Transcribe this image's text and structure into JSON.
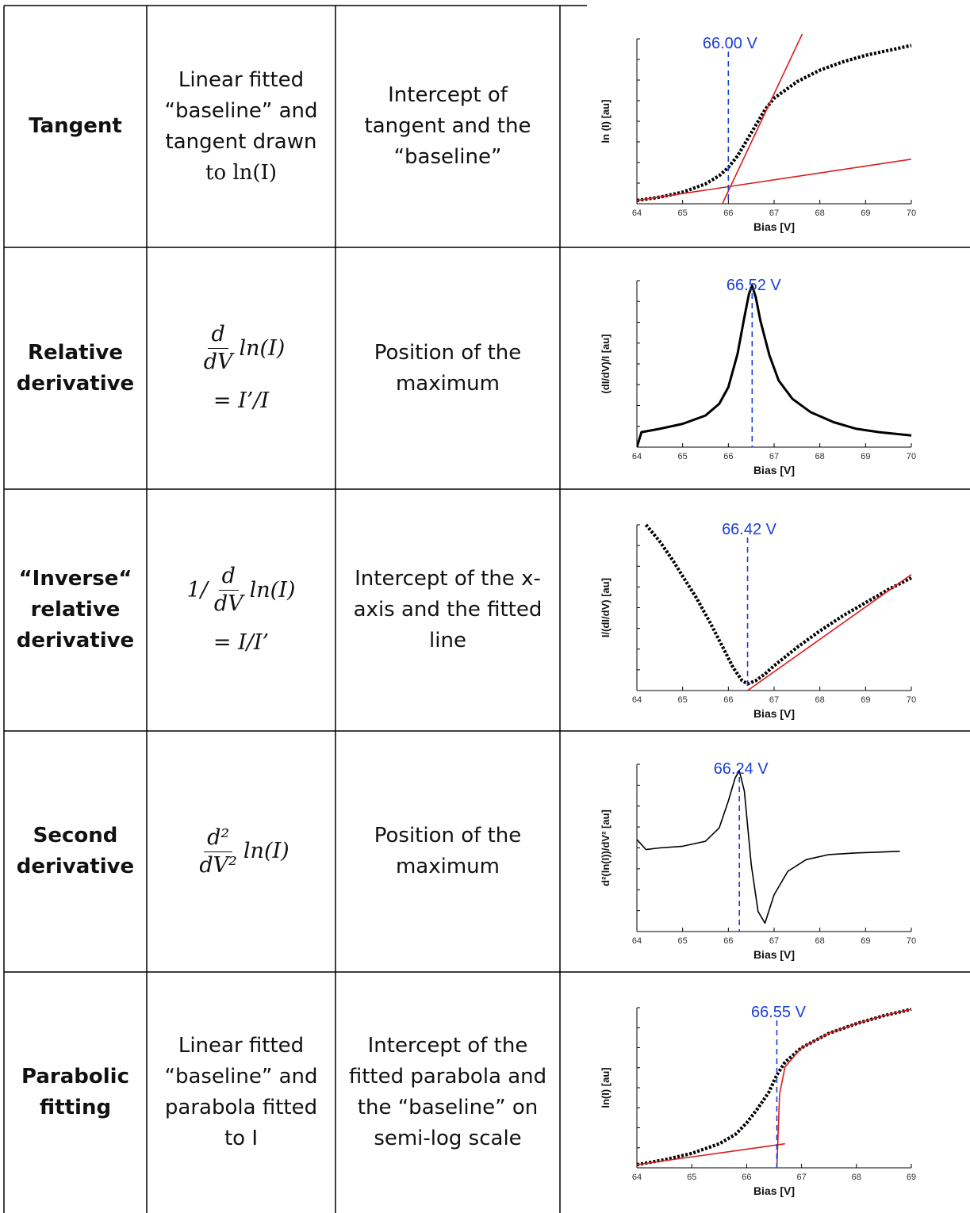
{
  "rows": [
    {
      "method": [
        "Tangent"
      ],
      "description": [
        "Linear fitted",
        "“baseline” and",
        "tangent drawn",
        "to ln(I)"
      ],
      "criterion": [
        "Intercept of",
        "tangent and the",
        "“baseline”"
      ],
      "formula_lines": []
    },
    {
      "method": [
        "Relative",
        "derivative"
      ],
      "formula_parts": {
        "num": "d",
        "den": "dV",
        "fn": "ln(I)",
        "eq": "= I’/I"
      },
      "criterion": [
        "Position of the",
        "maximum"
      ]
    },
    {
      "method": [
        "“Inverse“",
        "relative",
        "derivative"
      ],
      "formula_parts": {
        "pre": "1/",
        "num": "d",
        "den": "dV",
        "fn": "ln(I)",
        "eq": "= I/I’"
      },
      "criterion": [
        "Intercept of the x-",
        "axis and the fitted",
        "line"
      ]
    },
    {
      "method": [
        "Second",
        "derivative"
      ],
      "formula_parts": {
        "num": "d²",
        "den": "dV²",
        "fn": "ln(I)"
      },
      "criterion": [
        "Position of the",
        "maximum"
      ]
    },
    {
      "method": [
        "Parabolic",
        "fitting"
      ],
      "description": [
        "Linear fitted",
        "“baseline” and",
        "parabola fitted",
        "to I"
      ],
      "criterion": [
        "Intercept of the",
        "fitted parabola and",
        "the “baseline” on",
        "semi-log scale"
      ]
    }
  ],
  "chart_data": [
    {
      "type": "line",
      "xlabel": "Bias [V]",
      "ylabel": "ln (I) [au]",
      "xlim": [
        64,
        70
      ],
      "xticks": [
        "64",
        "65",
        "66",
        "67",
        "68",
        "69",
        "70"
      ],
      "annotation": "66.00 V",
      "marker_x": 66.0,
      "series": [
        {
          "x": [
            64,
            64.5,
            65,
            65.5,
            65.8,
            66.0,
            66.2,
            66.5,
            66.8,
            67,
            67.5,
            68,
            68.5,
            69,
            69.5,
            70
          ],
          "y": [
            0.02,
            0.04,
            0.07,
            0.12,
            0.17,
            0.22,
            0.29,
            0.43,
            0.57,
            0.64,
            0.74,
            0.81,
            0.86,
            0.9,
            0.93,
            0.96
          ]
        },
        {
          "x": [
            64,
            70
          ],
          "y": [
            0.02,
            0.27
          ]
        },
        {
          "x": [
            65.75,
            67.7
          ],
          "y": [
            -0.07,
            1.08
          ]
        }
      ],
      "colors": {
        "data": "#000000",
        "fit": "#dd1c1c",
        "marker": "#1a3fd6"
      }
    },
    {
      "type": "line",
      "xlabel": "Bias [V]",
      "ylabel": "(dI/dV)/I [au]",
      "xlim": [
        64,
        70
      ],
      "xticks": [
        "64",
        "65",
        "66",
        "67",
        "68",
        "69",
        "70"
      ],
      "annotation": "66.52 V",
      "marker_x": 66.52,
      "series": [
        {
          "x": [
            64,
            64.1,
            64.5,
            65,
            65.5,
            65.8,
            66,
            66.2,
            66.35,
            66.45,
            66.52,
            66.6,
            66.7,
            66.9,
            67.1,
            67.4,
            67.8,
            68.3,
            68.8,
            69.3,
            70
          ],
          "y": [
            0.0,
            0.09,
            0.11,
            0.14,
            0.19,
            0.26,
            0.36,
            0.56,
            0.78,
            0.92,
            0.97,
            0.9,
            0.76,
            0.55,
            0.4,
            0.29,
            0.21,
            0.15,
            0.11,
            0.09,
            0.07
          ]
        }
      ],
      "colors": {
        "data": "#000000",
        "marker": "#1a3fd6"
      }
    },
    {
      "type": "line",
      "xlabel": "Bias [V]",
      "ylabel": "I/(dI/dV) [au]",
      "xlim": [
        64,
        70
      ],
      "xticks": [
        "64",
        "65",
        "66",
        "67",
        "68",
        "69",
        "70"
      ],
      "annotation": "66.42 V",
      "marker_x": 66.42,
      "series": [
        {
          "x": [
            64.2,
            64.5,
            64.8,
            65,
            65.3,
            65.6,
            65.9,
            66.1,
            66.3,
            66.42,
            66.6,
            66.8,
            67,
            67.5,
            68,
            68.5,
            69,
            69.5,
            70
          ],
          "y": [
            1.0,
            0.9,
            0.78,
            0.69,
            0.56,
            0.41,
            0.25,
            0.14,
            0.06,
            0.04,
            0.06,
            0.1,
            0.15,
            0.26,
            0.36,
            0.45,
            0.53,
            0.61,
            0.68
          ]
        },
        {
          "x": [
            66.42,
            70
          ],
          "y": [
            0.0,
            0.7
          ]
        }
      ],
      "colors": {
        "data": "#000000",
        "fit": "#dd1c1c",
        "marker": "#1a3fd6"
      }
    },
    {
      "type": "line",
      "xlabel": "Bias [V]",
      "ylabel": "d²(ln(I))/dV² [au]",
      "xlim": [
        64,
        70
      ],
      "xticks": [
        "64",
        "65",
        "66",
        "67",
        "68",
        "69",
        "70"
      ],
      "annotation": "66.24 V",
      "marker_x": 66.24,
      "series": [
        {
          "x": [
            64,
            64.1,
            64.2,
            64.5,
            65,
            65.5,
            65.8,
            66.0,
            66.15,
            66.24,
            66.35,
            66.5,
            66.65,
            66.8,
            67,
            67.3,
            67.7,
            68.2,
            68.8,
            69.3,
            69.75
          ],
          "y": [
            0.55,
            0.52,
            0.49,
            0.5,
            0.51,
            0.54,
            0.62,
            0.78,
            0.92,
            0.96,
            0.84,
            0.4,
            0.12,
            0.05,
            0.22,
            0.36,
            0.43,
            0.46,
            0.47,
            0.475,
            0.48
          ]
        }
      ],
      "colors": {
        "data": "#000000",
        "marker": "#1a3fd6"
      }
    },
    {
      "type": "line",
      "xlabel": "Bias [V]",
      "ylabel": "ln(I) [au]",
      "xlim": [
        64,
        69
      ],
      "xticks": [
        "64",
        "65",
        "66",
        "67",
        "68",
        "69"
      ],
      "annotation": "66.55 V",
      "marker_x": 66.55,
      "series": [
        {
          "x": [
            64,
            64.5,
            65,
            65.5,
            65.8,
            66,
            66.2,
            66.4,
            66.55,
            66.7,
            67,
            67.5,
            68,
            68.5,
            69
          ],
          "y": [
            0.02,
            0.05,
            0.09,
            0.15,
            0.21,
            0.28,
            0.37,
            0.47,
            0.58,
            0.66,
            0.75,
            0.84,
            0.9,
            0.95,
            0.99
          ]
        },
        {
          "x": [
            64,
            66.7
          ],
          "y": [
            0.02,
            0.15
          ]
        },
        {
          "x": [
            66.55,
            66.6,
            66.7,
            67,
            67.5,
            68,
            68.5,
            69
          ],
          "y": [
            0.0,
            0.46,
            0.63,
            0.75,
            0.84,
            0.9,
            0.95,
            0.99
          ]
        }
      ],
      "colors": {
        "data": "#000000",
        "fit": "#dd1c1c",
        "marker": "#1a3fd6"
      }
    }
  ]
}
